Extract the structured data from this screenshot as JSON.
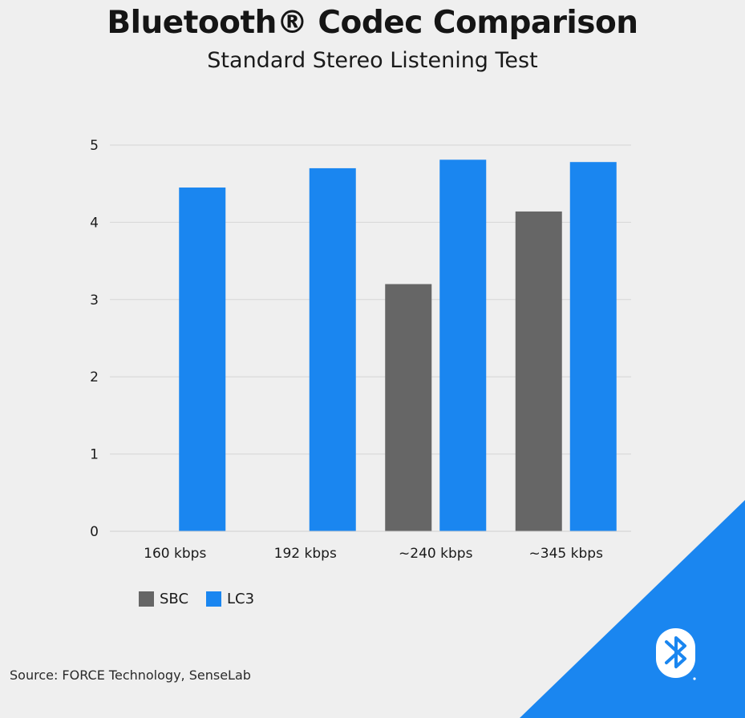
{
  "title": "Bluetooth® Codec Comparison",
  "subtitle": "Standard Stereo Listening Test",
  "source": "Source: FORCE Technology, SenseLab",
  "colors": {
    "background": "#efefef",
    "sbc": "#666666",
    "lc3": "#1a86f0",
    "corner": "#1a86f0",
    "grid": "#d6d6d6"
  },
  "corner_icon": "bluetooth-logo-icon",
  "chart_data": {
    "type": "bar",
    "categories": [
      "160 kbps",
      "192 kbps",
      "~240 kbps",
      "~345 kbps"
    ],
    "series": [
      {
        "name": "SBC",
        "values": [
          null,
          null,
          3.2,
          4.14
        ]
      },
      {
        "name": "LC3",
        "values": [
          4.45,
          4.7,
          4.81,
          4.78
        ]
      }
    ],
    "ylim": [
      0,
      5
    ],
    "yticks": [
      "0",
      "1",
      "2",
      "3",
      "4",
      "5"
    ],
    "grid": true,
    "legend": "bottom-left"
  }
}
